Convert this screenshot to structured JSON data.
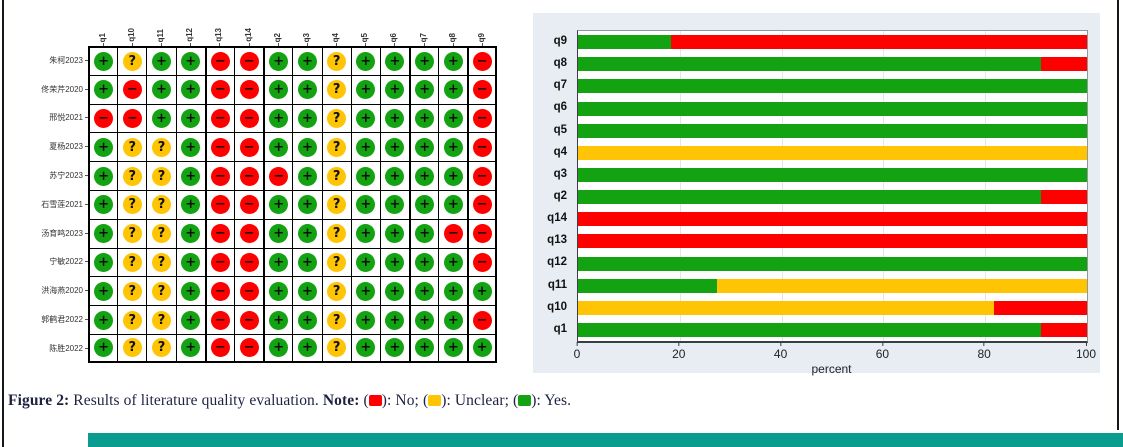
{
  "matrix": {
    "columns": [
      "q1",
      "q10",
      "q11",
      "q12",
      "q13",
      "q14",
      "q2",
      "q3",
      "q4",
      "q5",
      "q6",
      "q7",
      "q8",
      "q9"
    ],
    "group_start_columns": [
      "q13",
      "q2",
      "q7",
      "q9"
    ],
    "symbols": {
      "yes": "+",
      "unclear": "?",
      "no": "−"
    },
    "colors": {
      "yes": "#12A212",
      "unclear": "#FFC403",
      "no": "#FF0000"
    },
    "rows": [
      {
        "label": "朱柯2023",
        "cells": [
          "yes",
          "unclear",
          "yes",
          "yes",
          "no",
          "no",
          "yes",
          "yes",
          "unclear",
          "yes",
          "yes",
          "yes",
          "yes",
          "no"
        ]
      },
      {
        "label": "佟荣芹2020",
        "cells": [
          "yes",
          "no",
          "yes",
          "yes",
          "no",
          "no",
          "yes",
          "yes",
          "unclear",
          "yes",
          "yes",
          "yes",
          "yes",
          "no"
        ]
      },
      {
        "label": "邢悦2021",
        "cells": [
          "no",
          "no",
          "yes",
          "yes",
          "no",
          "no",
          "yes",
          "yes",
          "unclear",
          "yes",
          "yes",
          "yes",
          "yes",
          "no"
        ]
      },
      {
        "label": "夏杨2023",
        "cells": [
          "yes",
          "unclear",
          "unclear",
          "yes",
          "no",
          "no",
          "yes",
          "yes",
          "unclear",
          "yes",
          "yes",
          "yes",
          "yes",
          "no"
        ]
      },
      {
        "label": "苏宁2023",
        "cells": [
          "yes",
          "unclear",
          "unclear",
          "yes",
          "no",
          "no",
          "no",
          "yes",
          "unclear",
          "yes",
          "yes",
          "yes",
          "yes",
          "no"
        ]
      },
      {
        "label": "石雪莲2021",
        "cells": [
          "yes",
          "unclear",
          "unclear",
          "yes",
          "no",
          "no",
          "yes",
          "yes",
          "unclear",
          "yes",
          "yes",
          "yes",
          "yes",
          "no"
        ]
      },
      {
        "label": "汤育鸣2023",
        "cells": [
          "yes",
          "unclear",
          "unclear",
          "yes",
          "no",
          "no",
          "yes",
          "yes",
          "unclear",
          "yes",
          "yes",
          "yes",
          "no",
          "no"
        ]
      },
      {
        "label": "宁敏2022",
        "cells": [
          "yes",
          "unclear",
          "unclear",
          "yes",
          "no",
          "no",
          "yes",
          "yes",
          "unclear",
          "yes",
          "yes",
          "yes",
          "yes",
          "no"
        ]
      },
      {
        "label": "洪海燕2020",
        "cells": [
          "yes",
          "unclear",
          "unclear",
          "yes",
          "no",
          "no",
          "yes",
          "yes",
          "unclear",
          "yes",
          "yes",
          "yes",
          "yes",
          "yes"
        ]
      },
      {
        "label": "郭鹤君2022",
        "cells": [
          "yes",
          "unclear",
          "unclear",
          "yes",
          "no",
          "no",
          "yes",
          "yes",
          "unclear",
          "yes",
          "yes",
          "yes",
          "yes",
          "no"
        ]
      },
      {
        "label": "陈胜2022",
        "cells": [
          "yes",
          "unclear",
          "unclear",
          "yes",
          "no",
          "no",
          "yes",
          "yes",
          "unclear",
          "yes",
          "yes",
          "yes",
          "yes",
          "yes"
        ]
      }
    ]
  },
  "chart_data": {
    "type": "bar",
    "orientation": "horizontal",
    "stacked": true,
    "categories": [
      "q9",
      "q8",
      "q7",
      "q6",
      "q5",
      "q4",
      "q3",
      "q2",
      "q14",
      "q13",
      "q12",
      "q11",
      "q10",
      "q1"
    ],
    "series": [
      {
        "name": "Yes",
        "color": "#12A212",
        "values": [
          18.2,
          90.9,
          100,
          100,
          100,
          0,
          100,
          90.9,
          0,
          0,
          100,
          27.3,
          0,
          90.9
        ]
      },
      {
        "name": "Unclear",
        "color": "#FFC403",
        "values": [
          0,
          0,
          0,
          0,
          0,
          100,
          0,
          0,
          0,
          0,
          0,
          72.7,
          81.8,
          0
        ]
      },
      {
        "name": "No",
        "color": "#FF0000",
        "values": [
          81.8,
          9.1,
          0,
          0,
          0,
          0,
          0,
          9.1,
          100,
          100,
          0,
          0,
          18.2,
          9.1
        ]
      }
    ],
    "xlabel": "percent",
    "xlim": [
      0,
      100
    ],
    "xticks": [
      0,
      20,
      40,
      60,
      80,
      100
    ],
    "grid": true,
    "legend_position": "none",
    "plot_bg": "#ffffff",
    "panel_bg": "#E8EDF3"
  },
  "caption": {
    "figure_label": "Figure 2:",
    "text": "Results of literature quality evaluation.",
    "note_label": "Note:",
    "legend": [
      {
        "label": "No",
        "color": "#FF0000"
      },
      {
        "label": "Unclear",
        "color": "#FFC403"
      },
      {
        "label": "Yes",
        "color": "#12A212"
      }
    ]
  }
}
